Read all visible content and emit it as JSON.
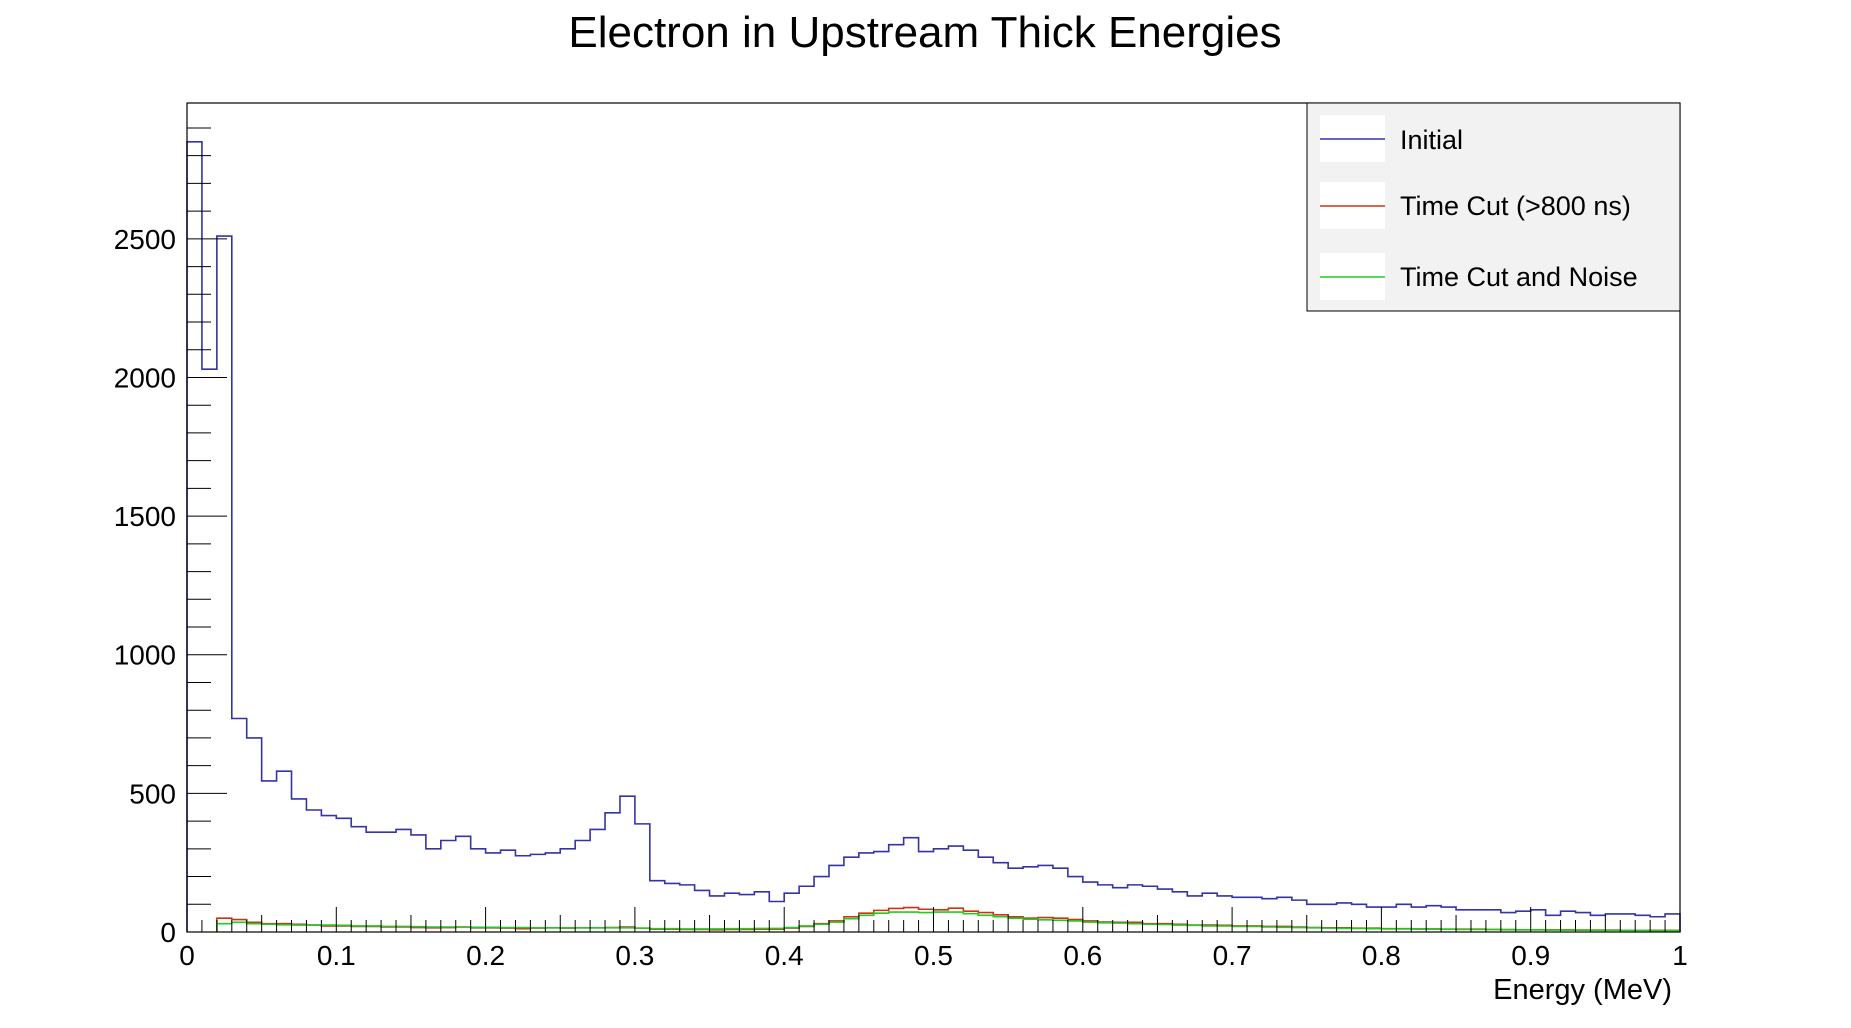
{
  "chart_data": {
    "type": "histogram",
    "title": "Electron in Upstream Thick Energies",
    "xlabel": "Energy (MeV)",
    "ylabel": "",
    "xlim": [
      0,
      1
    ],
    "ylim": [
      0,
      2990
    ],
    "x_ticks": [
      "0",
      "0.1",
      "0.2",
      "0.3",
      "0.4",
      "0.5",
      "0.6",
      "0.7",
      "0.8",
      "0.9",
      "1"
    ],
    "y_ticks": [
      "0",
      "500",
      "1000",
      "1500",
      "2000",
      "2500"
    ],
    "bin_width": 0.01,
    "legend_position": "top-right",
    "grid": false,
    "series": [
      {
        "name": "Initial",
        "color": "#3333aa",
        "values": [
          2850,
          2030,
          2510,
          770,
          700,
          545,
          580,
          480,
          440,
          420,
          410,
          380,
          360,
          360,
          370,
          350,
          300,
          330,
          345,
          300,
          285,
          295,
          275,
          280,
          285,
          300,
          330,
          370,
          430,
          490,
          390,
          185,
          175,
          170,
          150,
          130,
          140,
          135,
          145,
          110,
          140,
          165,
          200,
          240,
          270,
          285,
          290,
          315,
          340,
          290,
          300,
          310,
          295,
          270,
          250,
          230,
          235,
          240,
          230,
          200,
          180,
          170,
          160,
          170,
          165,
          155,
          145,
          130,
          140,
          130,
          125,
          125,
          120,
          125,
          115,
          100,
          100,
          105,
          100,
          90,
          90,
          100,
          90,
          95,
          90,
          80,
          80,
          80,
          70,
          75,
          80,
          60,
          75,
          70,
          60,
          65,
          65,
          60,
          55,
          65
        ]
      },
      {
        "name": "Time Cut (>800 ns)",
        "color": "#cc3311",
        "values": [
          0,
          0,
          50,
          45,
          35,
          30,
          30,
          28,
          25,
          22,
          22,
          20,
          20,
          18,
          18,
          16,
          15,
          16,
          18,
          15,
          15,
          14,
          12,
          14,
          15,
          14,
          15,
          15,
          16,
          18,
          14,
          10,
          10,
          9,
          9,
          8,
          9,
          9,
          10,
          10,
          14,
          20,
          30,
          40,
          55,
          68,
          78,
          85,
          88,
          82,
          80,
          86,
          75,
          70,
          62,
          55,
          50,
          52,
          50,
          45,
          40,
          36,
          35,
          35,
          30,
          30,
          28,
          25,
          25,
          24,
          22,
          22,
          20,
          20,
          18,
          16,
          15,
          15,
          14,
          14,
          12,
          12,
          11,
          11,
          10,
          10,
          10,
          9,
          9,
          8,
          8,
          8,
          8,
          7,
          7,
          7,
          6,
          6,
          6,
          6
        ]
      },
      {
        "name": "Time Cut and Noise",
        "color": "#22cc22",
        "values": [
          0,
          0,
          30,
          35,
          30,
          28,
          26,
          25,
          25,
          25,
          24,
          22,
          22,
          20,
          20,
          19,
          18,
          18,
          18,
          17,
          17,
          16,
          16,
          15,
          15,
          15,
          15,
          15,
          15,
          15,
          14,
          12,
          12,
          11,
          11,
          11,
          12,
          12,
          13,
          13,
          16,
          22,
          28,
          36,
          48,
          60,
          68,
          72,
          72,
          70,
          72,
          72,
          66,
          60,
          55,
          50,
          46,
          44,
          42,
          40,
          36,
          33,
          32,
          30,
          28,
          27,
          25,
          24,
          22,
          22,
          20,
          20,
          18,
          17,
          16,
          15,
          14,
          13,
          13,
          12,
          11,
          11,
          10,
          10,
          10,
          9,
          9,
          9,
          8,
          8,
          8,
          7,
          7,
          7,
          6,
          6,
          6,
          6,
          5,
          5
        ]
      }
    ]
  }
}
